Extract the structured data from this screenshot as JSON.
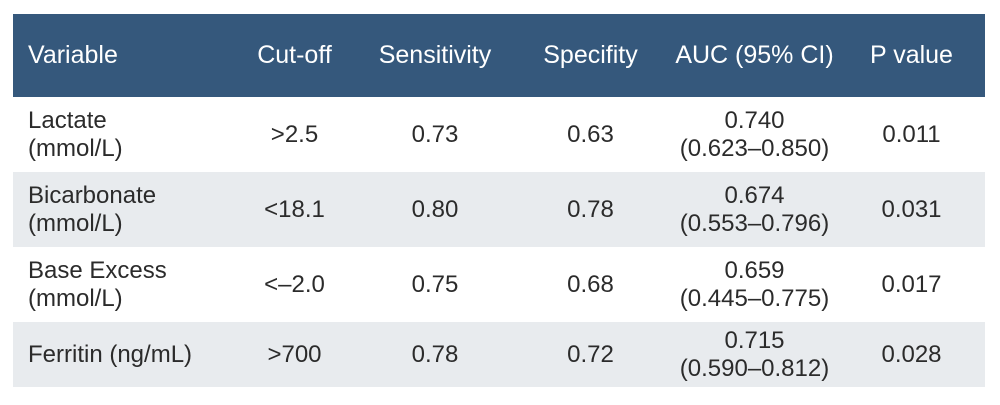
{
  "colors": {
    "header_bg": "#35587c",
    "header_text": "#ffffff",
    "row_alt_bg": "#e8ebee",
    "row_bg": "#ffffff",
    "body_text": "#2b2b2b"
  },
  "table": {
    "columns": [
      {
        "label": "Variable"
      },
      {
        "label": "Cut-off"
      },
      {
        "label": "Sensitivity"
      },
      {
        "label": "Specifity"
      },
      {
        "label": "AUC (95% CI)"
      },
      {
        "label": "P value"
      }
    ],
    "rows": [
      {
        "variable": "Lactate\n(mmol/L)",
        "cutoff": ">2.5",
        "sensitivity": "0.73",
        "specifity": "0.63",
        "auc": "0.740\n(0.623–0.850)",
        "p_value": "0.011"
      },
      {
        "variable": "Bicarbonate\n(mmol/L)",
        "cutoff": "<18.1",
        "sensitivity": "0.80",
        "specifity": "0.78",
        "auc": "0.674\n(0.553–0.796)",
        "p_value": "0.031"
      },
      {
        "variable": "Base Excess\n(mmol/L)",
        "cutoff": "<–2.0",
        "sensitivity": "0.75",
        "specifity": "0.68",
        "auc": "0.659\n(0.445–0.775)",
        "p_value": "0.017"
      },
      {
        "variable": "Ferritin (ng/mL)",
        "cutoff": ">700",
        "sensitivity": "0.78",
        "specifity": "0.72",
        "auc": "0.715\n(0.590–0.812)",
        "p_value": "0.028"
      }
    ]
  }
}
